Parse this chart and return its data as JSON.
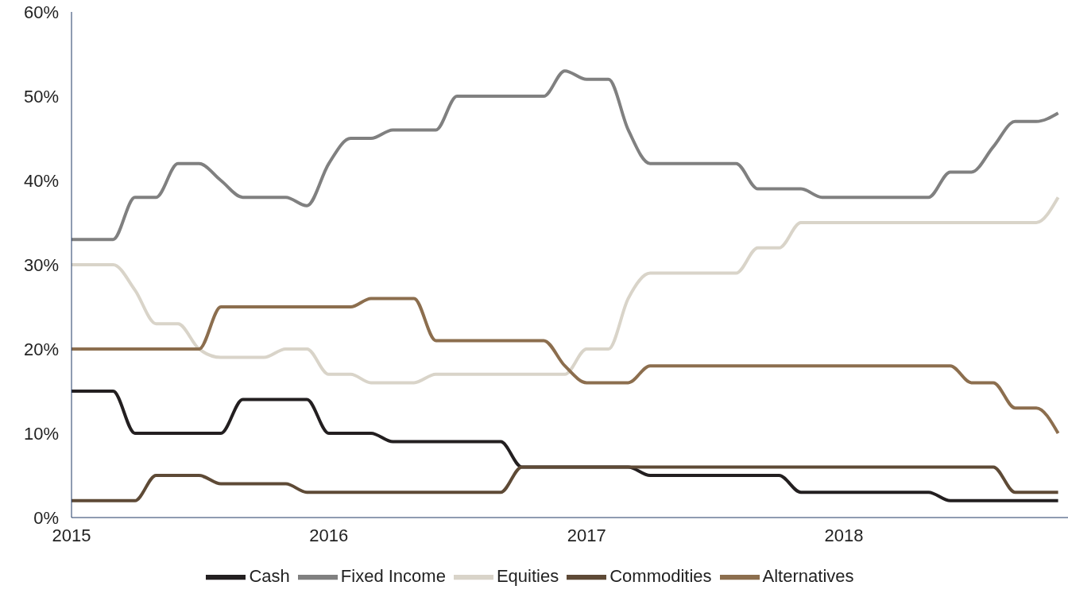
{
  "chart_data": {
    "type": "line",
    "x": [
      "2015-01",
      "2015-02",
      "2015-03",
      "2015-04",
      "2015-05",
      "2015-06",
      "2015-07",
      "2015-08",
      "2015-09",
      "2015-10",
      "2015-11",
      "2015-12",
      "2016-01",
      "2016-02",
      "2016-03",
      "2016-04",
      "2016-05",
      "2016-06",
      "2016-07",
      "2016-08",
      "2016-09",
      "2016-10",
      "2016-11",
      "2016-12",
      "2017-01",
      "2017-02",
      "2017-03",
      "2017-04",
      "2017-05",
      "2017-06",
      "2017-07",
      "2017-08",
      "2017-09",
      "2017-10",
      "2017-11",
      "2017-12",
      "2018-01",
      "2018-02",
      "2018-03",
      "2018-04",
      "2018-05",
      "2018-06",
      "2018-07",
      "2018-08",
      "2018-09",
      "2018-10",
      "2018-11"
    ],
    "series": [
      {
        "name": "Cash",
        "color": "#231f20",
        "values": [
          15,
          15,
          15,
          10,
          10,
          10,
          10,
          10,
          14,
          14,
          14,
          14,
          10,
          10,
          10,
          9,
          9,
          9,
          9,
          9,
          9,
          6,
          6,
          6,
          6,
          6,
          6,
          5,
          5,
          5,
          5,
          5,
          5,
          5,
          3,
          3,
          3,
          3,
          3,
          3,
          3,
          2,
          2,
          2,
          2,
          2,
          2
        ]
      },
      {
        "name": "Fixed Income",
        "color": "#808080",
        "values": [
          33,
          33,
          33,
          38,
          38,
          42,
          42,
          40,
          38,
          38,
          38,
          37,
          42,
          45,
          45,
          46,
          46,
          46,
          50,
          50,
          50,
          50,
          50,
          53,
          52,
          52,
          46,
          42,
          42,
          42,
          42,
          42,
          39,
          39,
          39,
          38,
          38,
          38,
          38,
          38,
          38,
          41,
          41,
          44,
          47,
          47,
          48
        ]
      },
      {
        "name": "Equities",
        "color": "#d9d4c9",
        "values": [
          30,
          30,
          30,
          27,
          23,
          23,
          20,
          19,
          19,
          19,
          20,
          20,
          17,
          17,
          16,
          16,
          16,
          17,
          17,
          17,
          17,
          17,
          17,
          17,
          20,
          20,
          26,
          29,
          29,
          29,
          29,
          29,
          32,
          32,
          35,
          35,
          35,
          35,
          35,
          35,
          35,
          35,
          35,
          35,
          35,
          35,
          38
        ]
      },
      {
        "name": "Commodities",
        "color": "#5e4a36",
        "values": [
          2,
          2,
          2,
          2,
          5,
          5,
          5,
          4,
          4,
          4,
          4,
          3,
          3,
          3,
          3,
          3,
          3,
          3,
          3,
          3,
          3,
          6,
          6,
          6,
          6,
          6,
          6,
          6,
          6,
          6,
          6,
          6,
          6,
          6,
          6,
          6,
          6,
          6,
          6,
          6,
          6,
          6,
          6,
          6,
          3,
          3,
          3
        ]
      },
      {
        "name": "Alternatives",
        "color": "#8c6e4e",
        "values": [
          20,
          20,
          20,
          20,
          20,
          20,
          20,
          25,
          25,
          25,
          25,
          25,
          25,
          25,
          26,
          26,
          26,
          21,
          21,
          21,
          21,
          21,
          21,
          18,
          16,
          16,
          16,
          18,
          18,
          18,
          18,
          18,
          18,
          18,
          18,
          18,
          18,
          18,
          18,
          18,
          18,
          18,
          16,
          16,
          13,
          13,
          10
        ]
      }
    ],
    "xlim": [
      "2015",
      "2018-11-15"
    ],
    "xticks": [
      "2015",
      "2016",
      "2017",
      "2018"
    ],
    "ylim": [
      0,
      60
    ],
    "yticks": [
      {
        "value": 0,
        "label": "0%"
      },
      {
        "value": 10,
        "label": "10%"
      },
      {
        "value": 20,
        "label": "20%"
      },
      {
        "value": 30,
        "label": "30%"
      },
      {
        "value": 40,
        "label": "40%"
      },
      {
        "value": 50,
        "label": "50%"
      },
      {
        "value": 60,
        "label": "60%"
      }
    ],
    "legend": "bottom",
    "grid": false,
    "marker": "none",
    "line_style": "solid"
  }
}
